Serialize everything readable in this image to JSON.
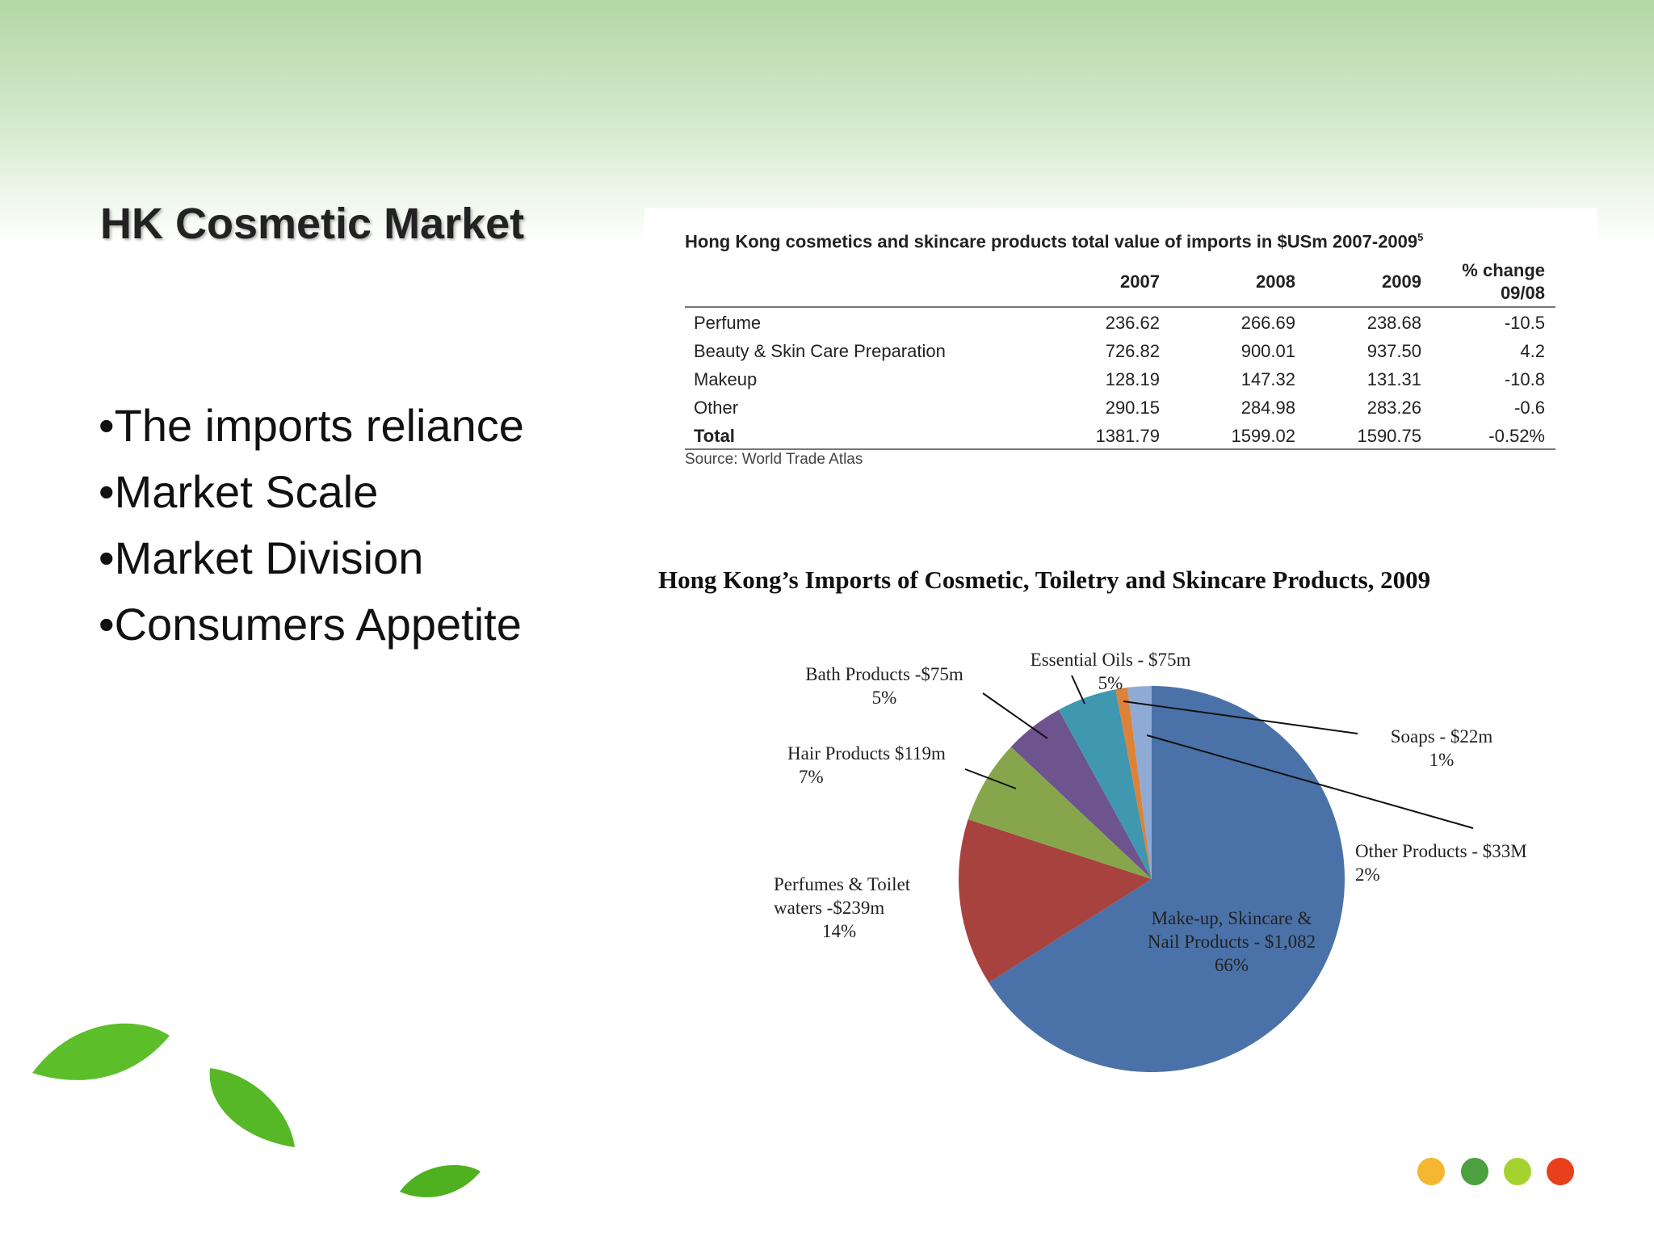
{
  "slide": {
    "title": "HK Cosmetic Market",
    "bullets": [
      "•The imports reliance",
      "•Market Scale",
      "•Market Division",
      "•Consumers Appetite"
    ]
  },
  "table": {
    "title": "Hong Kong cosmetics and skincare products total value of imports in $USm 2007-2009",
    "note_mark": "5",
    "columns": [
      "2007",
      "2008",
      "2009",
      "% change",
      "09/08"
    ],
    "rows": [
      {
        "label": "Perfume",
        "cells": [
          "236.62",
          "266.69",
          "238.68",
          "-10.5"
        ]
      },
      {
        "label": "Beauty & Skin Care Preparation",
        "cells": [
          "726.82",
          "900.01",
          "937.50",
          "4.2"
        ]
      },
      {
        "label": "Makeup",
        "cells": [
          "128.19",
          "147.32",
          "131.31",
          "-10.8"
        ]
      },
      {
        "label": "Other",
        "cells": [
          "290.15",
          "284.98",
          "283.26",
          "-0.6"
        ]
      },
      {
        "label": "Total",
        "cells": [
          "1381.79",
          "1599.02",
          "1590.75",
          "-0.52%"
        ]
      }
    ],
    "source": "Source: World Trade Atlas"
  },
  "chart_data": {
    "type": "pie",
    "title": "Hong Kong’s Imports of Cosmetic, Toiletry and Skincare Products, 2009",
    "categories": [
      "Make-up, Skincare & Nail Products -  $1,082",
      "Perfumes & Toilet waters -$239m",
      "Hair  Products $119m",
      "Bath Products -$75m",
      "Essential Oils - $75m",
      "Soaps - $22m",
      "Other Products - $33M"
    ],
    "values": [
      66,
      14,
      7,
      5,
      5,
      1,
      2
    ],
    "value_labels": [
      "66%",
      "14%",
      "7%",
      "5%",
      "5%",
      "1%",
      "2%"
    ],
    "colors": [
      "#4a72a8",
      "#a8423f",
      "#87a64b",
      "#6e548f",
      "#3f98b0",
      "#de8237",
      "#90aad6"
    ]
  }
}
